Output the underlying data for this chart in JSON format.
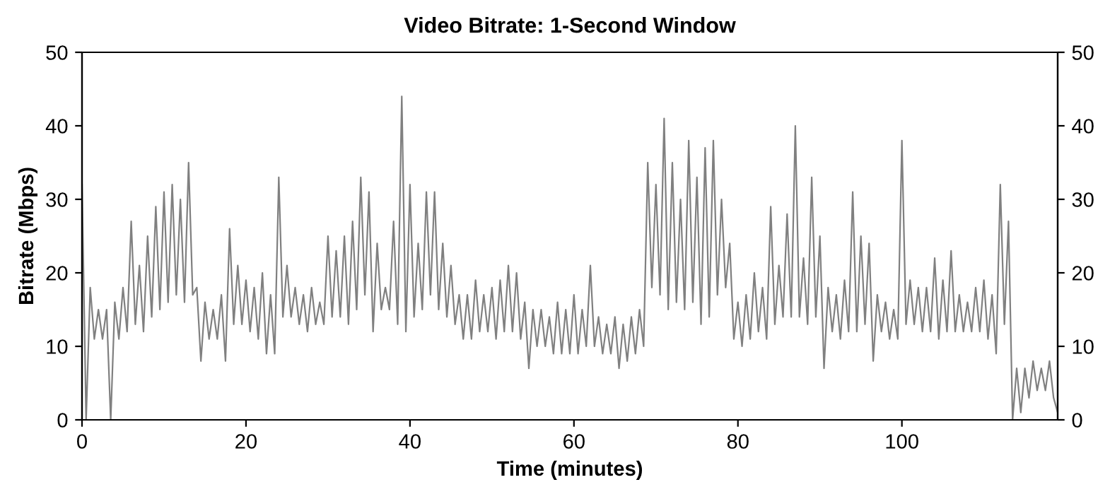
{
  "chart_data": {
    "type": "line",
    "title": "Video Bitrate: 1-Second Window",
    "xlabel": "Time (minutes)",
    "ylabel": "Bitrate (Mbps)",
    "xlim": [
      0,
      119
    ],
    "xticks": [
      0,
      20,
      40,
      60,
      80,
      100
    ],
    "ylim": [
      0,
      50
    ],
    "yticks": [
      0,
      10,
      20,
      30,
      40,
      50
    ],
    "y2lim": [
      0,
      50
    ],
    "y2ticks": [
      0,
      10,
      20,
      30,
      40,
      50
    ],
    "grid": false,
    "legend": false,
    "marker": "none",
    "line_style": "solid",
    "x": [
      0,
      0.5,
      1,
      1.5,
      2,
      2.5,
      3,
      3.5,
      4,
      4.5,
      5,
      5.5,
      6,
      6.5,
      7,
      7.5,
      8,
      8.5,
      9,
      9.5,
      10,
      10.5,
      11,
      11.5,
      12,
      12.5,
      13,
      13.5,
      14,
      14.5,
      15,
      15.5,
      16,
      16.5,
      17,
      17.5,
      18,
      18.5,
      19,
      19.5,
      20,
      20.5,
      21,
      21.5,
      22,
      22.5,
      23,
      23.5,
      24,
      24.5,
      25,
      25.5,
      26,
      26.5,
      27,
      27.5,
      28,
      28.5,
      29,
      29.5,
      30,
      30.5,
      31,
      31.5,
      32,
      32.5,
      33,
      33.5,
      34,
      34.5,
      35,
      35.5,
      36,
      36.5,
      37,
      37.5,
      38,
      38.5,
      39,
      39.5,
      40,
      40.5,
      41,
      41.5,
      42,
      42.5,
      43,
      43.5,
      44,
      44.5,
      45,
      45.5,
      46,
      46.5,
      47,
      47.5,
      48,
      48.5,
      49,
      49.5,
      50,
      50.5,
      51,
      51.5,
      52,
      52.5,
      53,
      53.5,
      54,
      54.5,
      55,
      55.5,
      56,
      56.5,
      57,
      57.5,
      58,
      58.5,
      59,
      59.5,
      60,
      60.5,
      61,
      61.5,
      62,
      62.5,
      63,
      63.5,
      64,
      64.5,
      65,
      65.5,
      66,
      66.5,
      67,
      67.5,
      68,
      68.5,
      69,
      69.5,
      70,
      70.5,
      71,
      71.5,
      72,
      72.5,
      73,
      73.5,
      74,
      74.5,
      75,
      75.5,
      76,
      76.5,
      77,
      77.5,
      78,
      78.5,
      79,
      79.5,
      80,
      80.5,
      81,
      81.5,
      82,
      82.5,
      83,
      83.5,
      84,
      84.5,
      85,
      85.5,
      86,
      86.5,
      87,
      87.5,
      88,
      88.5,
      89,
      89.5,
      90,
      90.5,
      91,
      91.5,
      92,
      92.5,
      93,
      93.5,
      94,
      94.5,
      95,
      95.5,
      96,
      96.5,
      97,
      97.5,
      98,
      98.5,
      99,
      99.5,
      100,
      100.5,
      101,
      101.5,
      102,
      102.5,
      103,
      103.5,
      104,
      104.5,
      105,
      105.5,
      106,
      106.5,
      107,
      107.5,
      108,
      108.5,
      109,
      109.5,
      110,
      110.5,
      111,
      111.5,
      112,
      112.5,
      113,
      113.5,
      114,
      114.5,
      115,
      115.5,
      116,
      116.5,
      117,
      117.5,
      118,
      118.5,
      119
    ],
    "series": [
      {
        "color": "#808080",
        "values": [
          32,
          0,
          18,
          11,
          15,
          11,
          15,
          0,
          16,
          11,
          18,
          12,
          27,
          13,
          21,
          12,
          25,
          14,
          29,
          15,
          31,
          16,
          32,
          17,
          30,
          16,
          35,
          17,
          18,
          8,
          16,
          11,
          15,
          11,
          17,
          8,
          26,
          13,
          21,
          13,
          19,
          12,
          18,
          11,
          20,
          9,
          17,
          9,
          33,
          14,
          21,
          14,
          18,
          13,
          17,
          12,
          18,
          13,
          16,
          13,
          25,
          14,
          23,
          14,
          25,
          13,
          27,
          15,
          33,
          17,
          31,
          12,
          24,
          15,
          18,
          15,
          27,
          13,
          44,
          12,
          32,
          14,
          24,
          15,
          31,
          17,
          31,
          15,
          24,
          14,
          21,
          13,
          17,
          11,
          17,
          11,
          19,
          12,
          17,
          12,
          18,
          11,
          19,
          12,
          21,
          12,
          20,
          11,
          16,
          7,
          15,
          10,
          15,
          10,
          14,
          9,
          16,
          9,
          15,
          9,
          17,
          9,
          15,
          10,
          21,
          10,
          14,
          9,
          13,
          9,
          14,
          7,
          13,
          8,
          14,
          9,
          15,
          10,
          35,
          18,
          32,
          17,
          41,
          15,
          35,
          16,
          30,
          15,
          38,
          16,
          33,
          13,
          37,
          14,
          38,
          17,
          30,
          18,
          24,
          11,
          16,
          10,
          17,
          11,
          20,
          12,
          18,
          11,
          29,
          13,
          21,
          14,
          28,
          14,
          40,
          14,
          22,
          13,
          33,
          14,
          25,
          7,
          18,
          12,
          17,
          11,
          19,
          12,
          31,
          12,
          25,
          13,
          24,
          8,
          17,
          12,
          16,
          11,
          15,
          11,
          38,
          13,
          19,
          13,
          18,
          12,
          18,
          12,
          22,
          11,
          19,
          12,
          23,
          12,
          17,
          12,
          16,
          12,
          18,
          12,
          19,
          11,
          17,
          9,
          32,
          13,
          27,
          0,
          7,
          1,
          7,
          3,
          8,
          4,
          7,
          4,
          8,
          3,
          1
        ]
      }
    ]
  }
}
